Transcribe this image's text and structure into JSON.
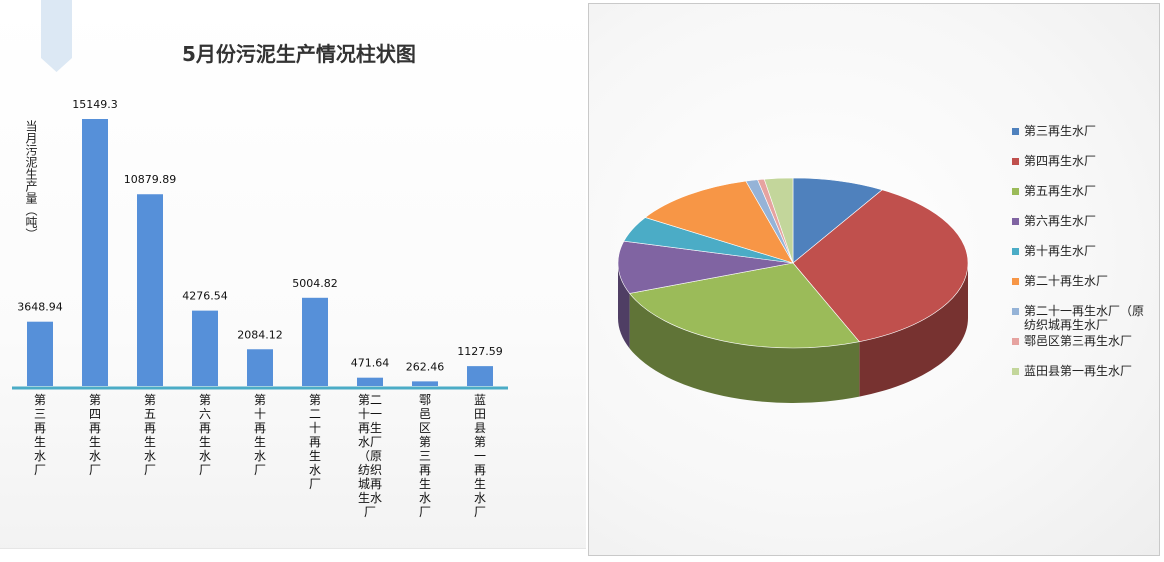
{
  "chart_data": [
    {
      "type": "bar",
      "title": "5月份污泥生产情况柱状图",
      "ylabel": "当月污泥生产量（吨）",
      "xlabel": "",
      "categories": [
        "第三再生水厂",
        "第四再生水厂",
        "第五再生水厂",
        "第六再生水厂",
        "第十再生水厂",
        "第二十再生水厂",
        "第二十一再生水厂（原纺织城再生水厂",
        "鄠邑区第三再生水厂",
        "蓝田县第一再生水厂"
      ],
      "values": [
        3648.94,
        15149.3,
        10879.89,
        4276.54,
        2084.12,
        5004.82,
        471.64,
        262.46,
        1127.59
      ],
      "value_labels": [
        "3648.94",
        "15149.3",
        "10879.89",
        "4276.54",
        "2084.12",
        "5004.82",
        "471.64",
        "262.46",
        "1127.59"
      ],
      "ylim": [
        0,
        15149.3
      ],
      "grid": false,
      "bar_color": "#5690d9"
    },
    {
      "type": "pie",
      "style": "3d",
      "legend_position": "right",
      "labels": [
        "第三再生水厂",
        "第四再生水厂",
        "第五再生水厂",
        "第六再生水厂",
        "第十再生水厂",
        "第二十再生水厂",
        "第二十一再生水厂（原纺织城再生水厂",
        "鄠邑区第三再生水厂",
        "蓝田县第一再生水厂"
      ],
      "values": [
        3648.94,
        15149.3,
        10879.89,
        4276.54,
        2084.12,
        5004.82,
        471.64,
        262.46,
        1127.59
      ],
      "colors": [
        "#4f81bd",
        "#c0504d",
        "#9bbb59",
        "#8064a2",
        "#4bacc6",
        "#f79646",
        "#95b3d7",
        "#e6a3a0",
        "#c3d69b"
      ]
    }
  ]
}
